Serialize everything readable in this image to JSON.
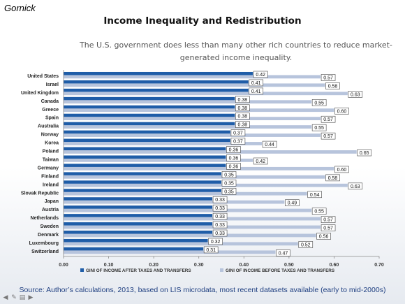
{
  "header": {
    "corner_label": "Gornick",
    "title": "Income Inequality and Redistribution",
    "subtitle": "The U.S. government does less than many other rich countries to reduce market-generated income inequality."
  },
  "footer": {
    "source": "Source: Author’s calculations, 2013, based on LIS microdata, most recent datasets available (early to mid-2000s)"
  },
  "nav": {
    "icons": [
      "prev-arrow-icon",
      "pen-icon",
      "menu-icon",
      "next-arrow-icon"
    ]
  },
  "chart_data": {
    "type": "bar",
    "orientation": "horizontal",
    "categories": [
      "United States",
      "Israel",
      "United Kingdom",
      "Canada",
      "Greece",
      "Spain",
      "Australia",
      "Norway",
      "Korea",
      "Poland",
      "Taiwan",
      "Germany",
      "Finland",
      "Ireland",
      "Slovak Republic",
      "Japan",
      "Austria",
      "Netherlands",
      "Sweden",
      "Denmark",
      "Luxembourg",
      "Switzerland"
    ],
    "series": [
      {
        "name": "GINI OF INCOME AFTER TAXES AND TRANSFERS",
        "color": "#1f5da8",
        "values": [
          0.42,
          0.41,
          0.41,
          0.38,
          0.38,
          0.38,
          0.38,
          0.37,
          0.37,
          0.36,
          0.36,
          0.36,
          0.35,
          0.35,
          0.35,
          0.33,
          0.33,
          0.33,
          0.33,
          0.33,
          0.32,
          0.31
        ],
        "labels": [
          "0.42",
          "0.41",
          "0.41",
          "0.38",
          "0.38",
          "0.38",
          "0.38",
          "0.37",
          "0.37",
          "0.36",
          "0.36",
          "0.36",
          "0.35",
          "0.35",
          "0.35",
          "0.33",
          "0.33",
          "0.33",
          "0.33",
          "0.33",
          "0.32",
          "0.31"
        ]
      },
      {
        "name": "GINI OF INCOME BEFORE TAXES AND TRANSFERS",
        "color": "#b7c4dc",
        "values": [
          0.57,
          0.58,
          0.63,
          0.55,
          0.6,
          0.57,
          0.55,
          0.57,
          0.44,
          0.65,
          0.42,
          0.6,
          0.58,
          0.63,
          0.54,
          0.49,
          0.55,
          0.57,
          0.57,
          0.56,
          0.52,
          0.47
        ],
        "labels": [
          "0.57",
          "0.58",
          "0.63",
          "0.55",
          "0.60",
          "0.57",
          "0.55",
          "0.57",
          "0.44",
          "0.65",
          "0.42",
          "0.60",
          "0.58",
          "0.63",
          "0.54",
          "0.49",
          "0.55",
          "0.57",
          "0.57",
          "0.56",
          "0.52",
          "0.47"
        ]
      }
    ],
    "xlim": [
      0,
      0.7
    ],
    "xticks": [
      "0.00",
      "0.10",
      "0.20",
      "0.30",
      "0.40",
      "0.50",
      "0.60",
      "0.70"
    ],
    "legend_position": "bottom",
    "grid": false
  }
}
